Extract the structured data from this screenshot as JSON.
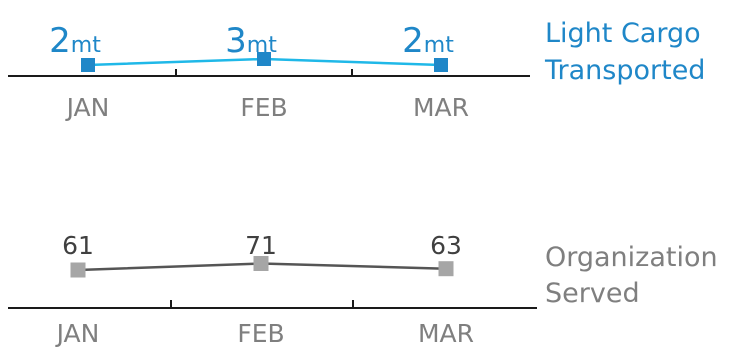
{
  "chart_data": [
    {
      "type": "line",
      "categories": [
        "JAN",
        "FEB",
        "MAR"
      ],
      "series_label_lines": [
        "Light Cargo",
        "Transported"
      ],
      "values": [
        2,
        3,
        2
      ],
      "value_labels": [
        {
          "number": "2",
          "unit": "mt"
        },
        {
          "number": "3",
          "unit": "mt"
        },
        {
          "number": "2",
          "unit": "mt"
        }
      ],
      "colors": {
        "line": "#1fb8e8",
        "marker": "#1f87c8",
        "label": "#1f87c8"
      }
    },
    {
      "type": "line",
      "categories": [
        "JAN",
        "FEB",
        "MAR"
      ],
      "series_label_lines": [
        "Organization",
        "Served"
      ],
      "values": [
        61,
        71,
        63
      ],
      "value_labels": [
        {
          "number": "61"
        },
        {
          "number": "71"
        },
        {
          "number": "63"
        }
      ],
      "colors": {
        "line": "#555555",
        "marker": "#a6a6a6",
        "label": "#404040"
      }
    }
  ]
}
